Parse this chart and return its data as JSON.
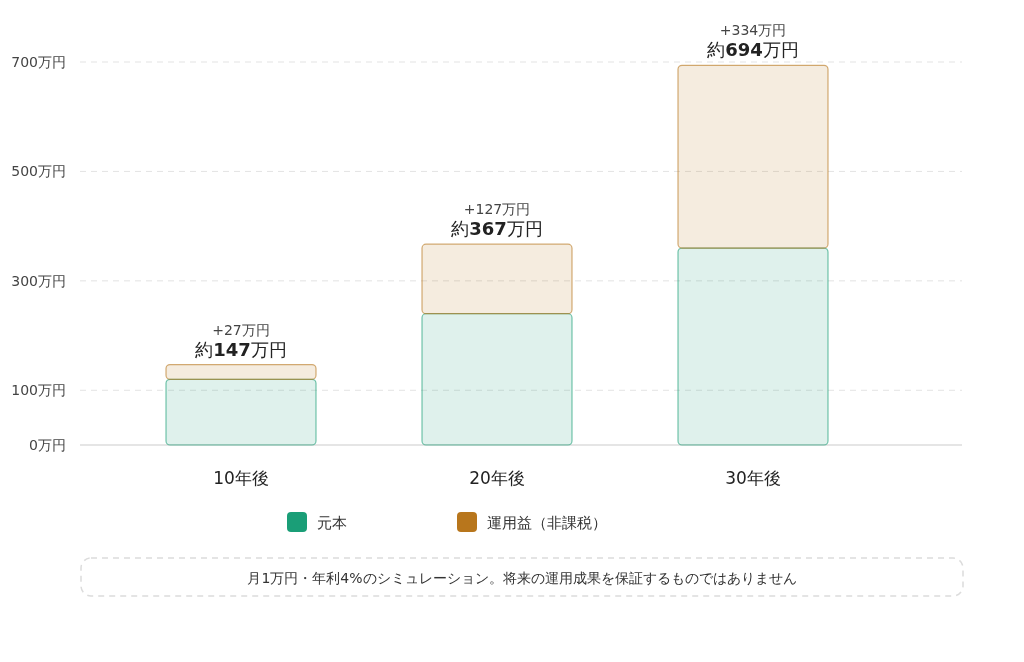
{
  "chart_data": {
    "type": "bar",
    "stacked": true,
    "categories": [
      "10年後",
      "20年後",
      "30年後"
    ],
    "series": [
      {
        "name": "元本",
        "color": "#1a9e77",
        "values": [
          120,
          240,
          360
        ]
      },
      {
        "name": "運用益（非課税）",
        "color": "#b8761c",
        "values": [
          27,
          127,
          334
        ],
        "value_labels": [
          "+27万円",
          "+127万円",
          "+334万円"
        ]
      }
    ],
    "totals": [
      "約147万円",
      "約367万円",
      "約694万円"
    ],
    "ylim": [
      0,
      700
    ],
    "yticks": [
      {
        "value": 0,
        "label": "0万円"
      },
      {
        "value": 100,
        "label": "100万円"
      },
      {
        "value": 300,
        "label": "300万円"
      },
      {
        "value": 500,
        "label": "500万円"
      },
      {
        "value": 700,
        "label": "700万円"
      }
    ],
    "grid": "y",
    "legend": "bottom",
    "annotations": [
      "月1万円・年利4%のシミュレーション。将来の運用成果を保証するものではありません"
    ]
  }
}
